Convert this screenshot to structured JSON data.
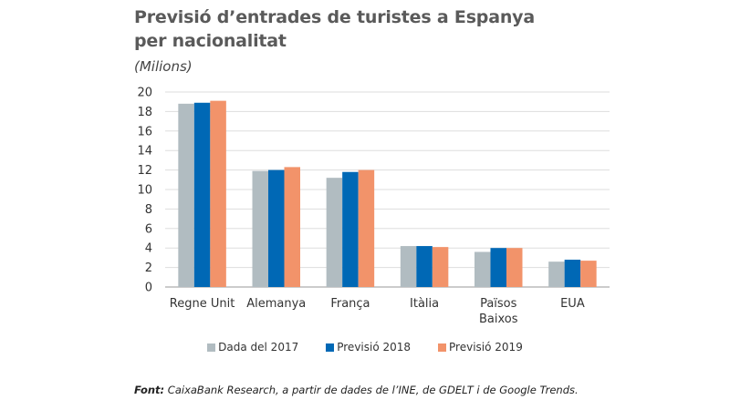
{
  "chart_data": {
    "type": "bar",
    "title": "Previsió d’entrades de turistes a Espanya per nacionalitat",
    "title_lines": [
      "Previsió d’entrades de turistes a Espanya",
      "per nacionalitat"
    ],
    "subtitle": "(Milions)",
    "xlabel": "",
    "ylabel": "",
    "ylim": [
      0,
      20
    ],
    "yticks": [
      0,
      2,
      4,
      6,
      8,
      10,
      12,
      14,
      16,
      18,
      20
    ],
    "grid": true,
    "legend_position": "bottom",
    "categories": [
      "Regne Unit",
      "Alemanya",
      "França",
      "Itàlia",
      "Països Baixos",
      "EUA"
    ],
    "category_lines": [
      [
        "Regne Unit"
      ],
      [
        "Alemanya"
      ],
      [
        "França"
      ],
      [
        "Itàlia"
      ],
      [
        "Països",
        "Baixos"
      ],
      [
        "EUA"
      ]
    ],
    "series": [
      {
        "name": "Dada del 2017",
        "color": "#b1bcc1",
        "values": [
          18.8,
          11.9,
          11.2,
          4.2,
          3.6,
          2.6
        ]
      },
      {
        "name": "Previsió 2018",
        "color": "#0068b5",
        "values": [
          18.9,
          12.0,
          11.8,
          4.2,
          4.0,
          2.8
        ]
      },
      {
        "name": "Previsió 2019",
        "color": "#f2936a",
        "values": [
          19.1,
          12.3,
          12.0,
          4.1,
          4.0,
          2.7
        ]
      }
    ],
    "source_label": "Font:",
    "source_text": " CaixaBank Research, a partir de dades de l’INE, de GDELT i de Google Trends."
  }
}
